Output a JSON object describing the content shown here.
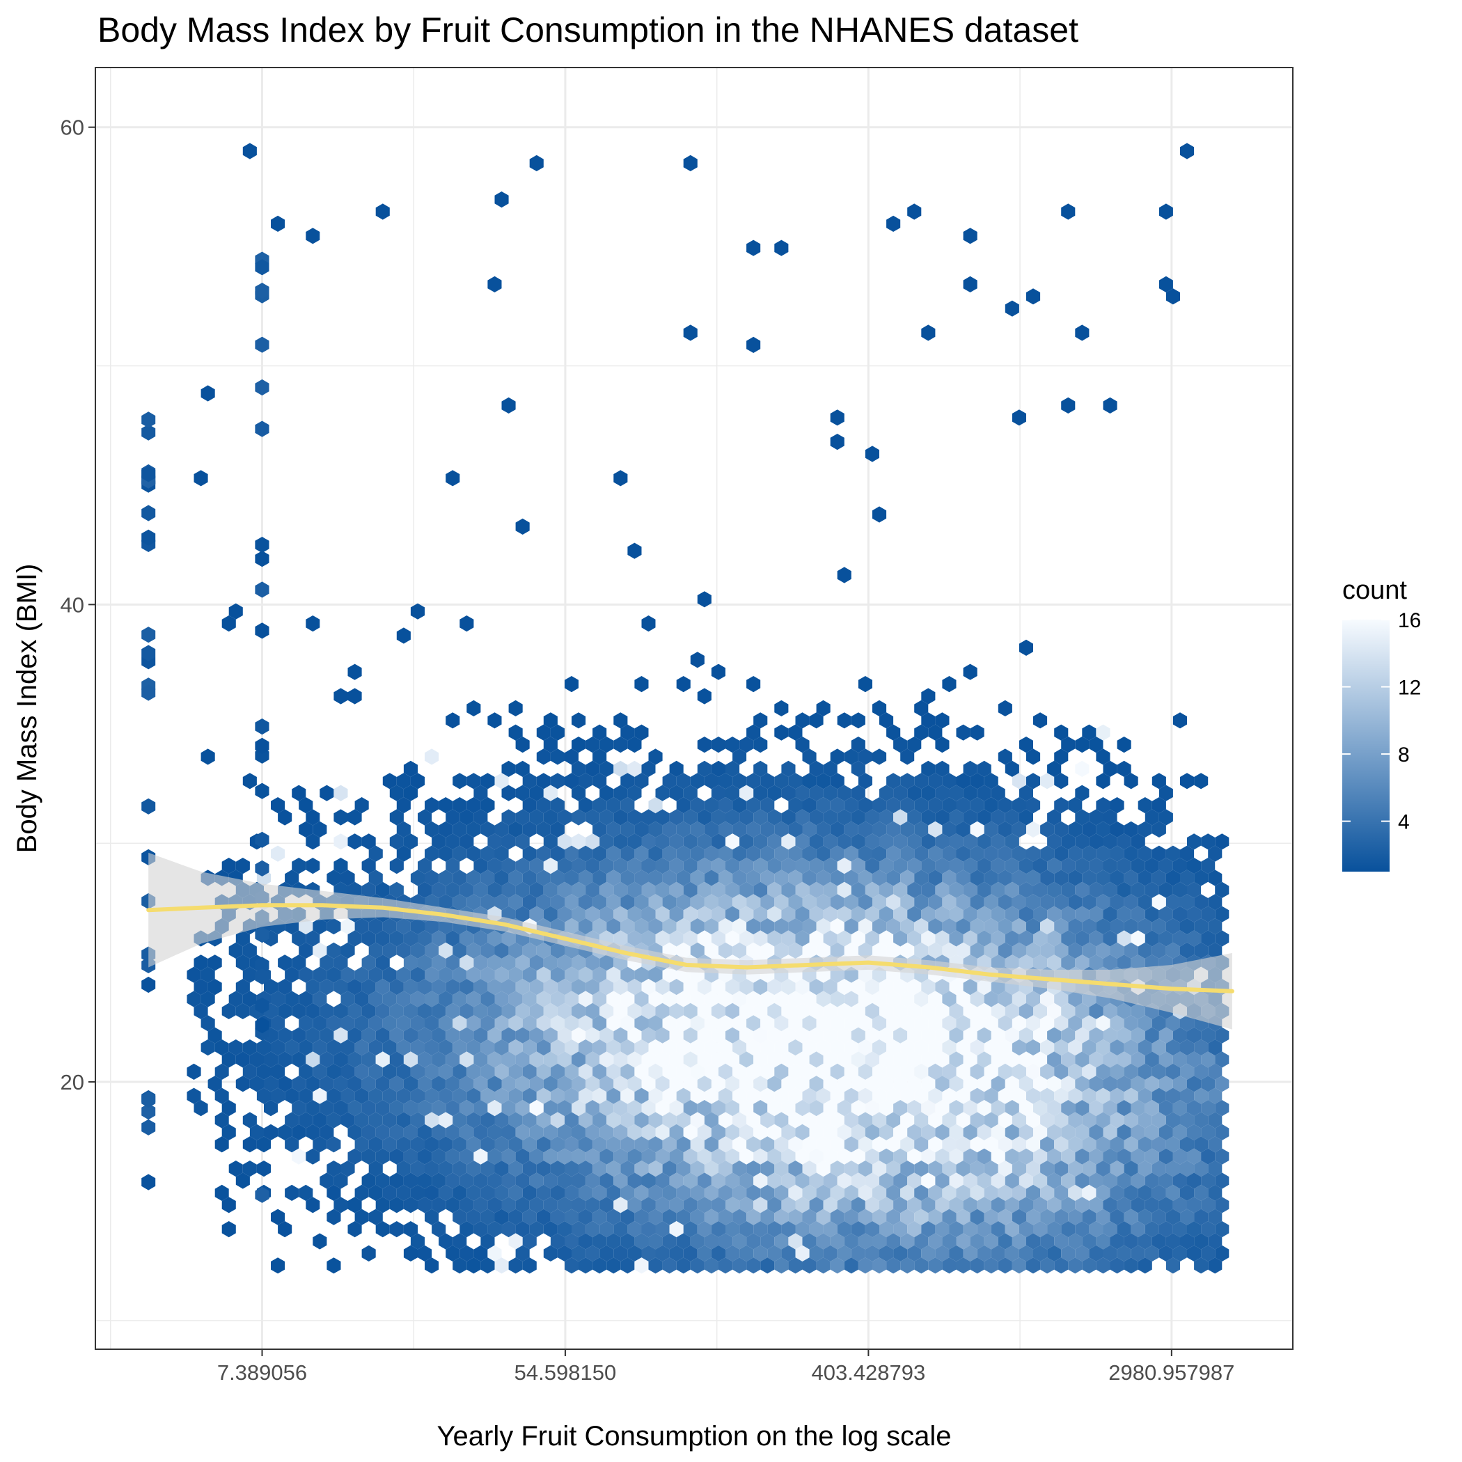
{
  "chart_data": {
    "type": "hexbin",
    "title": "Body Mass Index by Fruit Consumption in the NHANES dataset",
    "xlabel": "Yearly Fruit Consumption on the log scale",
    "ylabel": "Body Mass Index (BMI)",
    "x_scale": "log",
    "x_tick_labels": [
      "7.389056",
      "54.598150",
      "403.428793",
      "2980.957987"
    ],
    "x_tick_values_ln": [
      2,
      4,
      6,
      8
    ],
    "xlim_ln": [
      0.9,
      8.8
    ],
    "y_ticks": [
      20,
      40,
      60
    ],
    "ylim": [
      8.8,
      62.5
    ],
    "grid": true,
    "legend": {
      "title": "count",
      "position": "right",
      "ticks": [
        4,
        8,
        12,
        16
      ],
      "range": [
        1,
        16
      ],
      "color_low": "#08519c",
      "color_high": "#f7fbff"
    },
    "smooth_line": {
      "color": "#f5dc6e",
      "band_color": "#d3d3d3",
      "x_ln": [
        1.25,
        1.6,
        2.0,
        2.4,
        2.8,
        3.2,
        3.6,
        4.0,
        4.4,
        4.8,
        5.2,
        5.6,
        6.0,
        6.4,
        6.8,
        7.2,
        7.6,
        8.0,
        8.4
      ],
      "y": [
        27.2,
        27.3,
        27.4,
        27.4,
        27.3,
        27.0,
        26.6,
        26.0,
        25.4,
        24.9,
        24.8,
        24.9,
        25.0,
        24.8,
        24.5,
        24.3,
        24.1,
        23.9,
        23.8
      ],
      "ci_half_width": [
        2.4,
        1.5,
        0.9,
        0.6,
        0.4,
        0.3,
        0.3,
        0.3,
        0.3,
        0.3,
        0.3,
        0.3,
        0.3,
        0.3,
        0.3,
        0.4,
        0.6,
        1.0,
        1.6
      ]
    },
    "density_peaks": [
      {
        "x_ln": 6.2,
        "y": 22.0,
        "count": 14
      },
      {
        "x_ln": 5.4,
        "y": 23.5,
        "count": 11
      },
      {
        "x_ln": 6.4,
        "y": 17.5,
        "count": 13
      },
      {
        "x_ln": 4.5,
        "y": 22.0,
        "count": 9
      }
    ]
  }
}
